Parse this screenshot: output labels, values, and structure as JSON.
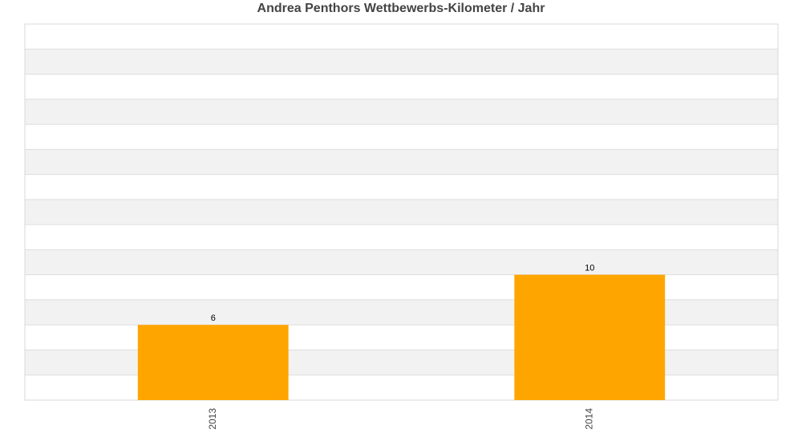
{
  "chart_data": {
    "type": "bar",
    "title": "Andrea Penthors Wettbewerbs-Kilometer / Jahr",
    "categories": [
      "2013",
      "2014"
    ],
    "values": [
      6,
      10
    ],
    "color": "#ffa500",
    "ylim": [
      0,
      30
    ],
    "yticks": [
      0,
      2,
      4,
      6,
      8,
      10,
      12,
      14,
      16,
      18,
      20,
      22,
      24,
      26,
      28,
      30
    ],
    "grid": true
  }
}
